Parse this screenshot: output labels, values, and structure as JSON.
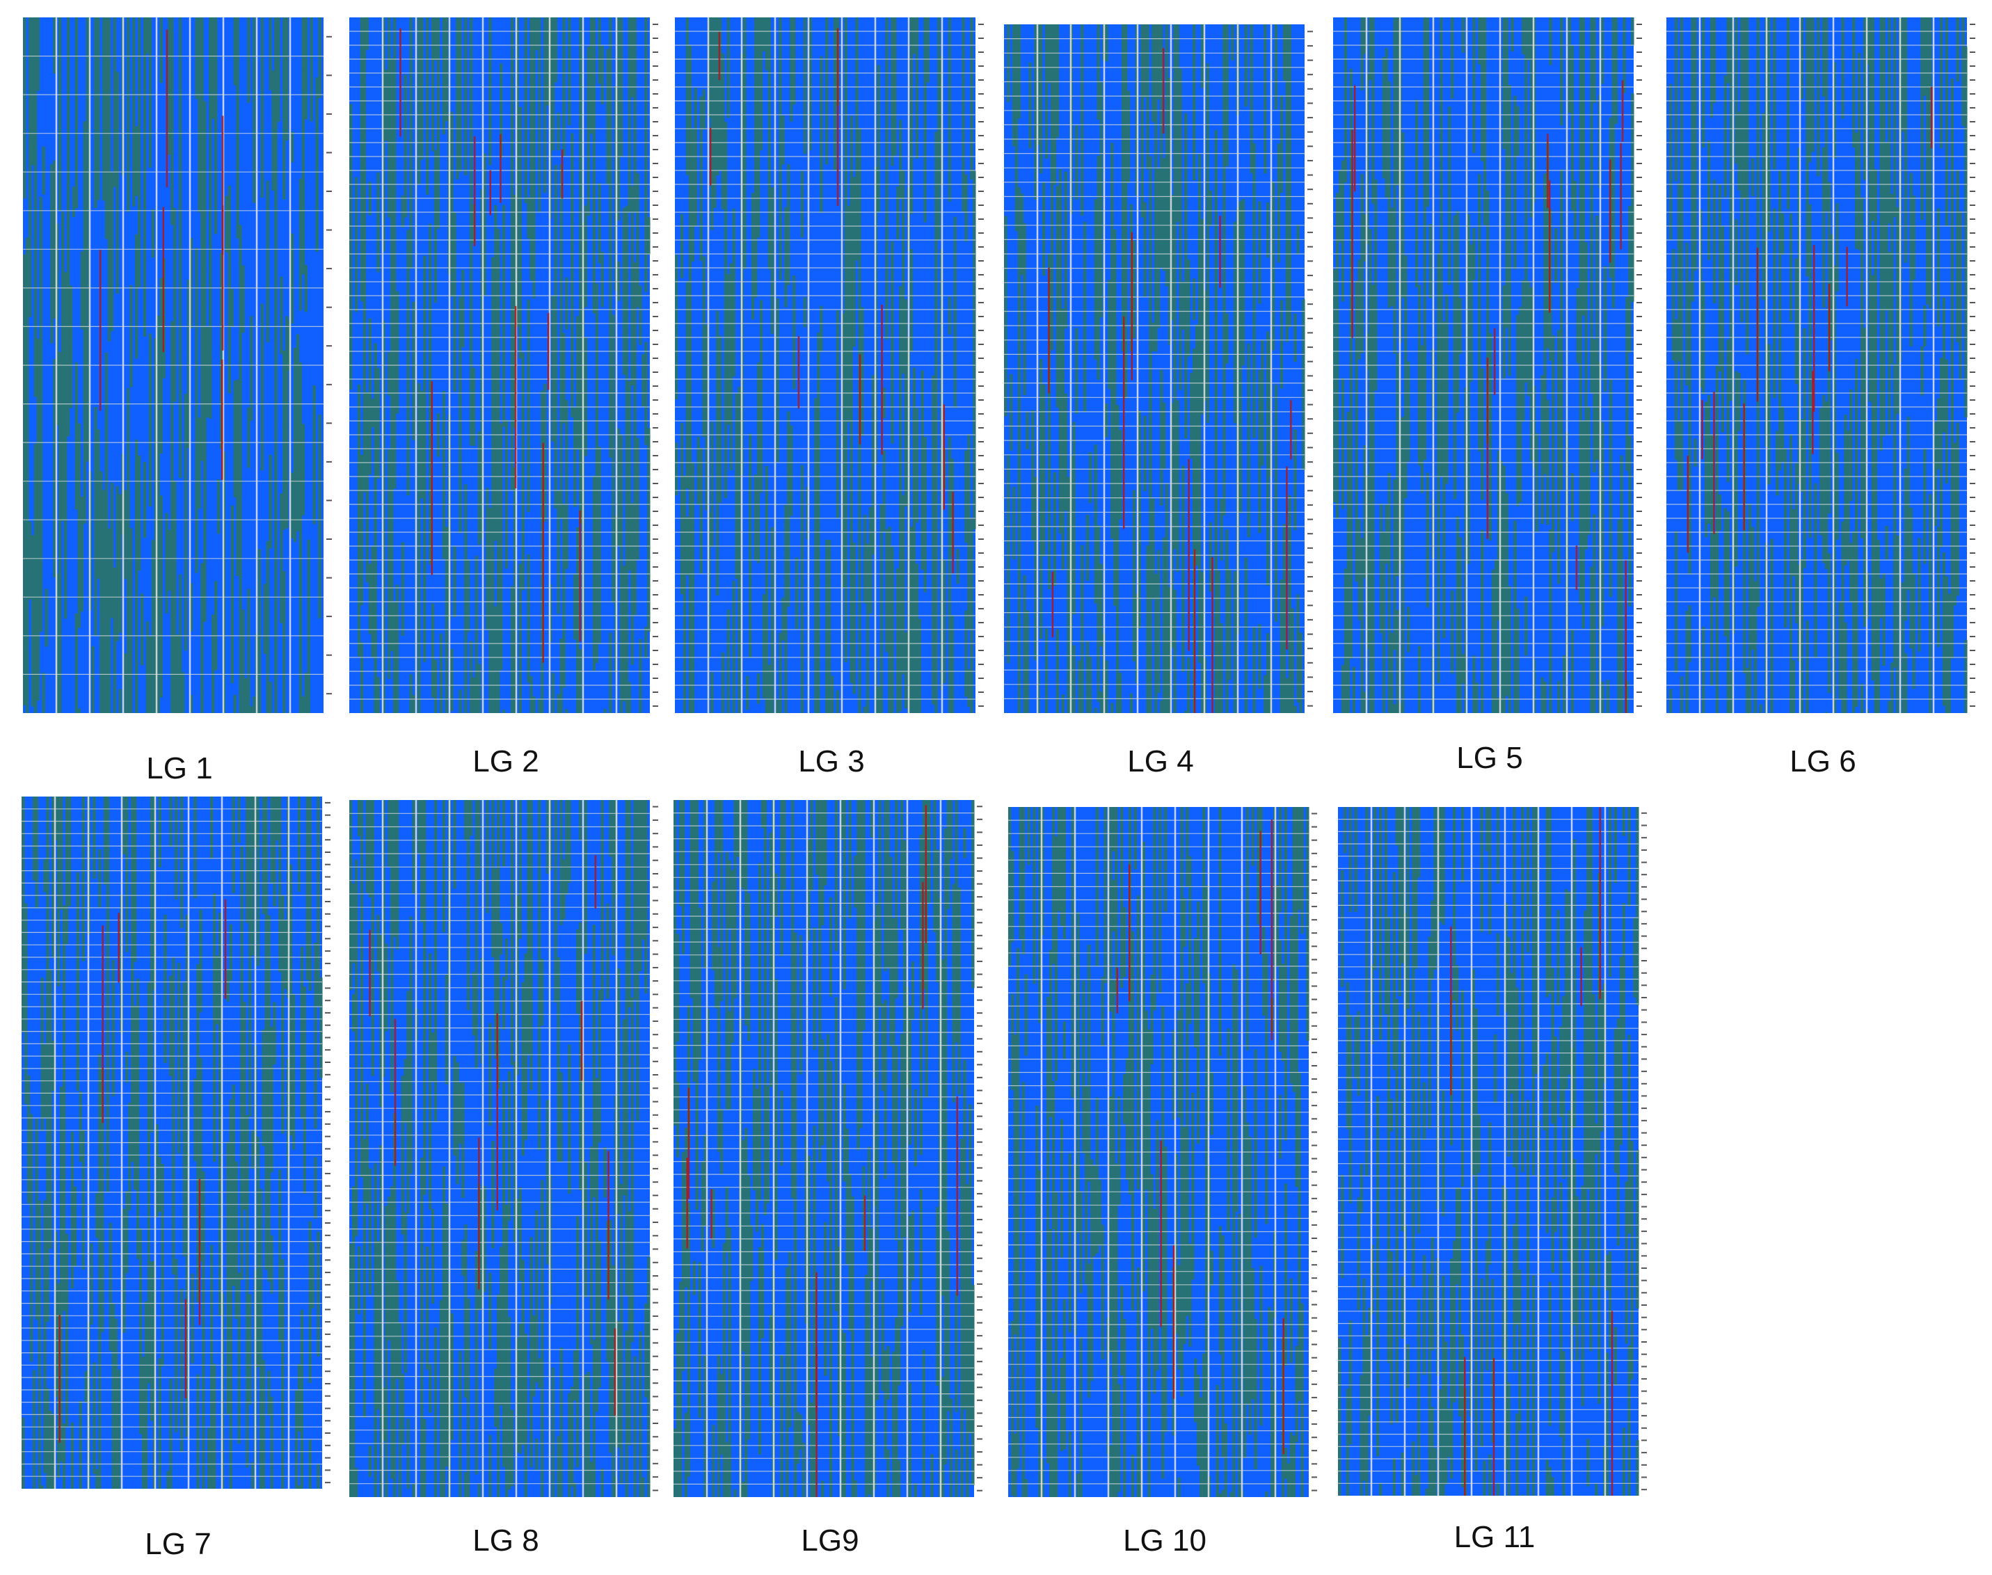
{
  "colors": {
    "blue": "#1060ff",
    "green": "#2a7560",
    "grid": "#d8dede",
    "red": "#b01818",
    "tick": "#555555"
  },
  "panels": [
    {
      "id": "lg1",
      "label": "LG 1",
      "rows": 18,
      "cols": 9
    },
    {
      "id": "lg2",
      "label": "LG 2",
      "rows": 50,
      "cols": 9
    },
    {
      "id": "lg3",
      "label": "LG 3",
      "rows": 50,
      "cols": 9
    },
    {
      "id": "lg4",
      "label": "LG 4",
      "rows": 48,
      "cols": 9
    },
    {
      "id": "lg5",
      "label": "LG 5",
      "rows": 50,
      "cols": 9
    },
    {
      "id": "lg6",
      "label": "LG 6",
      "rows": 50,
      "cols": 9
    },
    {
      "id": "lg7",
      "label": "LG 7",
      "rows": 56,
      "cols": 9
    },
    {
      "id": "lg8",
      "label": "LG 8",
      "rows": 52,
      "cols": 9
    },
    {
      "id": "lg9",
      "label": "LG9",
      "rows": 54,
      "cols": 9
    },
    {
      "id": "lg10",
      "label": "LG 10",
      "rows": 52,
      "cols": 9
    },
    {
      "id": "lg11",
      "label": "LG 11",
      "rows": 56,
      "cols": 9
    }
  ]
}
